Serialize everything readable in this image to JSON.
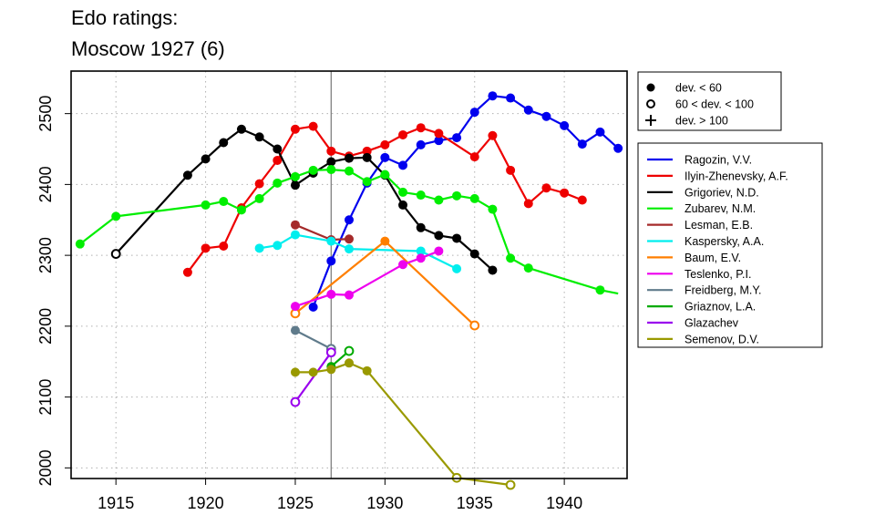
{
  "chart_data": {
    "type": "line",
    "title_lines": [
      "Edo ratings:",
      "Moscow 1927 (6)"
    ],
    "xlim": [
      1912.5,
      1943.5
    ],
    "ylim": [
      1985,
      2560
    ],
    "x_ticks": [
      1915,
      1920,
      1925,
      1930,
      1935,
      1940
    ],
    "y_ticks": [
      2000,
      2100,
      2200,
      2300,
      2400,
      2500
    ],
    "grid": true,
    "reference_x": 1927,
    "marker_legend": [
      {
        "symbol": "filled",
        "label": "dev. < 60"
      },
      {
        "symbol": "open",
        "label": "60 < dev. < 100"
      },
      {
        "symbol": "plus",
        "label": "dev. > 100"
      }
    ],
    "series": [
      {
        "name": "Ragozin, V.V.",
        "color": "#0000ee",
        "points": [
          [
            1926,
            2227,
            "f"
          ],
          [
            1927,
            2292,
            "f"
          ],
          [
            1928,
            2350,
            "f"
          ],
          [
            1929,
            2402,
            "f"
          ],
          [
            1930,
            2438,
            "f"
          ],
          [
            1931,
            2427,
            "f"
          ],
          [
            1932,
            2456,
            "f"
          ],
          [
            1933,
            2462,
            "f"
          ],
          [
            1934,
            2466,
            "f"
          ],
          [
            1935,
            2502,
            "f"
          ],
          [
            1936,
            2525,
            "f"
          ],
          [
            1937,
            2522,
            "f"
          ],
          [
            1938,
            2505,
            "f"
          ],
          [
            1939,
            2496,
            "f"
          ],
          [
            1940,
            2483,
            "f"
          ],
          [
            1941,
            2457,
            "f"
          ],
          [
            1942,
            2474,
            "f"
          ],
          [
            1943,
            2451,
            "f"
          ]
        ]
      },
      {
        "name": "Ilyin-Zhenevsky, A.F.",
        "color": "#ee0000",
        "points": [
          [
            1919,
            2276,
            "f"
          ],
          [
            1920,
            2310,
            "f"
          ],
          [
            1921,
            2313,
            "f"
          ],
          [
            1922,
            2367,
            "f"
          ],
          [
            1923,
            2401,
            "f"
          ],
          [
            1924,
            2434,
            "f"
          ],
          [
            1925,
            2478,
            "f"
          ],
          [
            1926,
            2482,
            "f"
          ],
          [
            1927,
            2447,
            "f"
          ],
          [
            1928,
            2440,
            "f"
          ],
          [
            1929,
            2447,
            "f"
          ],
          [
            1930,
            2456,
            "f"
          ],
          [
            1931,
            2470,
            "f"
          ],
          [
            1932,
            2480,
            "f"
          ],
          [
            1933,
            2472,
            "f"
          ],
          [
            1935,
            2439,
            "f"
          ],
          [
            1936,
            2469,
            "f"
          ],
          [
            1937,
            2420,
            "f"
          ],
          [
            1938,
            2373,
            "f"
          ],
          [
            1939,
            2395,
            "f"
          ],
          [
            1940,
            2388,
            "f"
          ],
          [
            1941,
            2378,
            "f"
          ]
        ]
      },
      {
        "name": "Grigoriev, N.D.",
        "color": "#000000",
        "points": [
          [
            1915,
            2302,
            "o"
          ],
          [
            1919,
            2413,
            "f"
          ],
          [
            1920,
            2436,
            "f"
          ],
          [
            1921,
            2459,
            "f"
          ],
          [
            1922,
            2478,
            "f"
          ],
          [
            1923,
            2467,
            "f"
          ],
          [
            1924,
            2450,
            "f"
          ],
          [
            1925,
            2399,
            "f"
          ],
          [
            1926,
            2416,
            "f"
          ],
          [
            1927,
            2432,
            "f"
          ],
          [
            1928,
            2437,
            "f"
          ],
          [
            1929,
            2438,
            "f"
          ],
          [
            1930,
            2413,
            "f"
          ],
          [
            1931,
            2371,
            "f"
          ],
          [
            1932,
            2339,
            "f"
          ],
          [
            1933,
            2328,
            "f"
          ],
          [
            1934,
            2324,
            "f"
          ],
          [
            1935,
            2302,
            "f"
          ],
          [
            1936,
            2279,
            "f"
          ]
        ]
      },
      {
        "name": "Zubarev, N.M.",
        "color": "#00ee00",
        "points": [
          [
            1913,
            2316,
            "f"
          ],
          [
            1915,
            2355,
            "f"
          ],
          [
            1920,
            2371,
            "f"
          ],
          [
            1921,
            2376,
            "f"
          ],
          [
            1922,
            2364,
            "f"
          ],
          [
            1923,
            2380,
            "f"
          ],
          [
            1924,
            2402,
            "f"
          ],
          [
            1925,
            2411,
            "f"
          ],
          [
            1926,
            2420,
            "f"
          ],
          [
            1927,
            2421,
            "f"
          ],
          [
            1928,
            2419,
            "f"
          ],
          [
            1929,
            2404,
            "f"
          ],
          [
            1930,
            2414,
            "f"
          ],
          [
            1931,
            2389,
            "f"
          ],
          [
            1932,
            2385,
            "f"
          ],
          [
            1933,
            2378,
            "f"
          ],
          [
            1934,
            2384,
            "f"
          ],
          [
            1935,
            2380,
            "f"
          ],
          [
            1936,
            2365,
            "f"
          ],
          [
            1937,
            2296,
            "f"
          ],
          [
            1938,
            2282,
            "f"
          ],
          [
            1942,
            2251,
            "f"
          ],
          [
            1943,
            2246,
            null
          ]
        ]
      },
      {
        "name": "Lesman, E.B.",
        "color": "#a52a2a",
        "points": [
          [
            1925,
            2343,
            "f"
          ],
          [
            1927,
            2322,
            "f"
          ],
          [
            1928,
            2323,
            "f"
          ]
        ]
      },
      {
        "name": "Kaspersky, A.A.",
        "color": "#00eeee",
        "points": [
          [
            1923,
            2310,
            "f"
          ],
          [
            1924,
            2314,
            "f"
          ],
          [
            1925,
            2329,
            "f"
          ],
          [
            1927,
            2320,
            "f"
          ],
          [
            1928,
            2309,
            "f"
          ],
          [
            1932,
            2306,
            "f"
          ],
          [
            1934,
            2281,
            "f"
          ]
        ]
      },
      {
        "name": "Baum, E.V.",
        "color": "#ff7f00",
        "points": [
          [
            1925,
            2218,
            "o"
          ],
          [
            1930,
            2320,
            "f"
          ],
          [
            1935,
            2201,
            "o"
          ]
        ]
      },
      {
        "name": "Teslenko, P.I.",
        "color": "#ee00ee",
        "points": [
          [
            1925,
            2228,
            "f"
          ],
          [
            1927,
            2245,
            "f"
          ],
          [
            1928,
            2244,
            "f"
          ],
          [
            1931,
            2287,
            "f"
          ],
          [
            1932,
            2296,
            "f"
          ],
          [
            1933,
            2306,
            "f"
          ]
        ]
      },
      {
        "name": "Freidberg, M.Y.",
        "color": "#607b8b",
        "points": [
          [
            1925,
            2194,
            "f"
          ],
          [
            1927,
            2168,
            "o"
          ]
        ]
      },
      {
        "name": "Griaznov, L.A.",
        "color": "#00aa00",
        "points": [
          [
            1927,
            2143,
            "f"
          ],
          [
            1928,
            2165,
            "o"
          ]
        ]
      },
      {
        "name": "Glazachev",
        "color": "#9a00ee",
        "points": [
          [
            1925,
            2093,
            "o"
          ],
          [
            1927,
            2163,
            "o"
          ]
        ]
      },
      {
        "name": "Semenov, D.V.",
        "color": "#999900",
        "points": [
          [
            1925,
            2135,
            "f"
          ],
          [
            1926,
            2135,
            "f"
          ],
          [
            1927,
            2139,
            "f"
          ],
          [
            1928,
            2148,
            "f"
          ],
          [
            1929,
            2137,
            "f"
          ],
          [
            1934,
            1986,
            "o"
          ],
          [
            1937,
            1976,
            "o"
          ]
        ]
      }
    ]
  }
}
